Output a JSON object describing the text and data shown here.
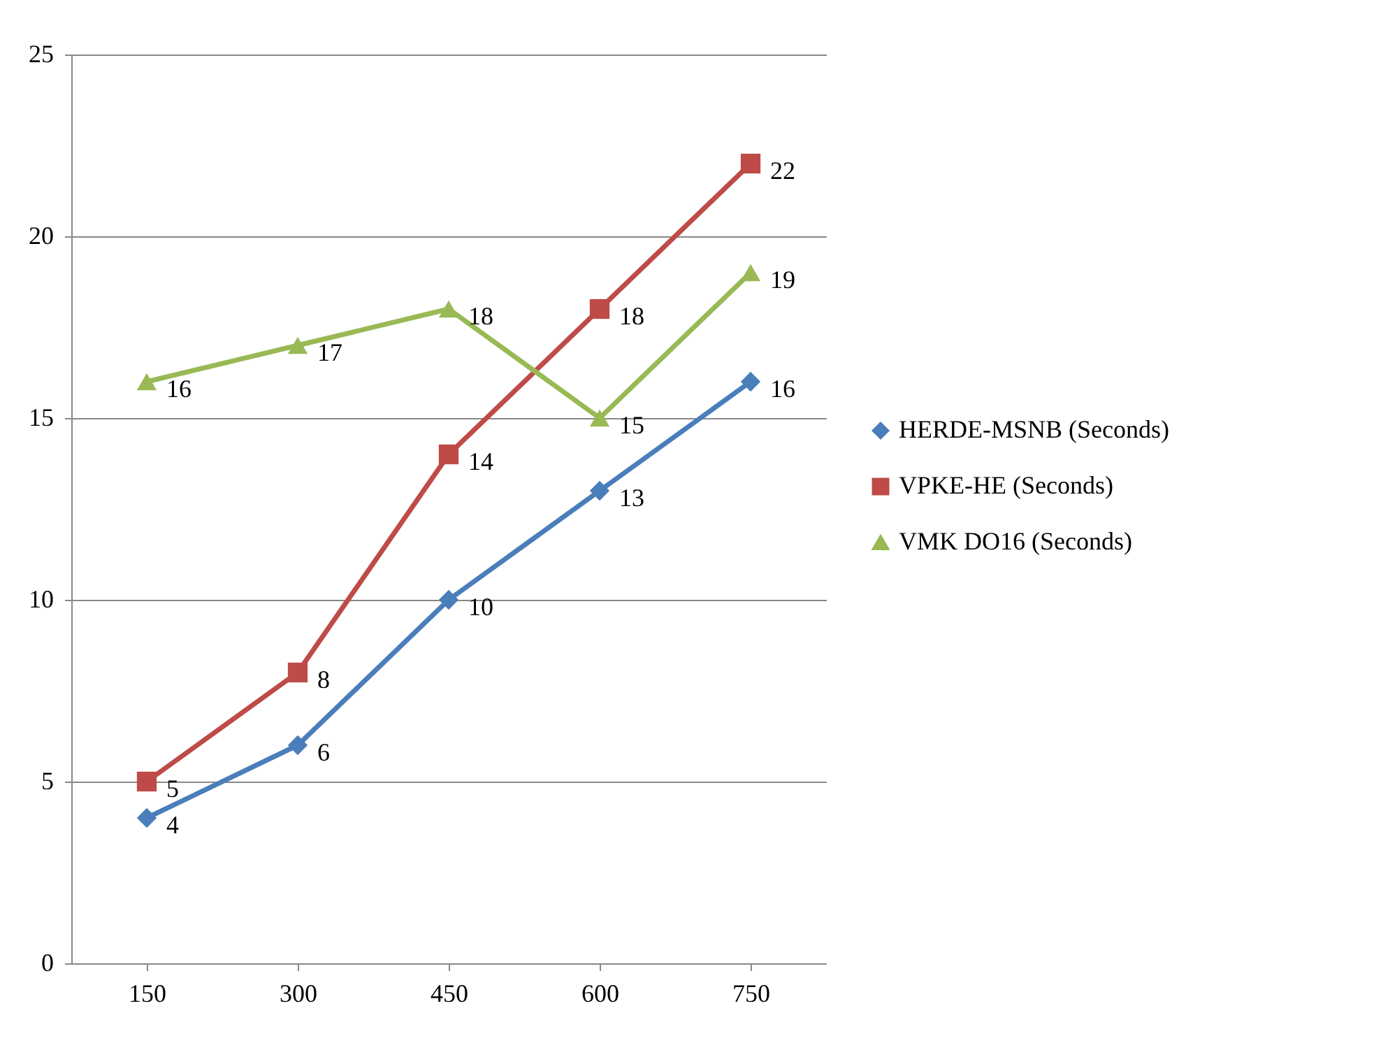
{
  "chart_data": {
    "type": "line",
    "categories": [
      "150",
      "300",
      "450",
      "600",
      "750"
    ],
    "series": [
      {
        "name": "HERDE-MSNB (Seconds)",
        "color": "#4a7ebb",
        "marker": "diamond",
        "values": [
          4,
          6,
          10,
          13,
          16
        ]
      },
      {
        "name": "VPKE-HE (Seconds)",
        "color": "#be4b48",
        "marker": "square",
        "values": [
          5,
          8,
          14,
          18,
          22
        ]
      },
      {
        "name": "VMK DO16 (Seconds)",
        "color": "#98b954",
        "marker": "triangle",
        "values": [
          16,
          17,
          18,
          15,
          19
        ]
      }
    ],
    "ylim": [
      0,
      25
    ],
    "yticks": [
      0,
      5,
      10,
      15,
      20,
      25
    ],
    "grid": "y",
    "legend": "right",
    "data_labels": true,
    "line_style": "solid"
  }
}
